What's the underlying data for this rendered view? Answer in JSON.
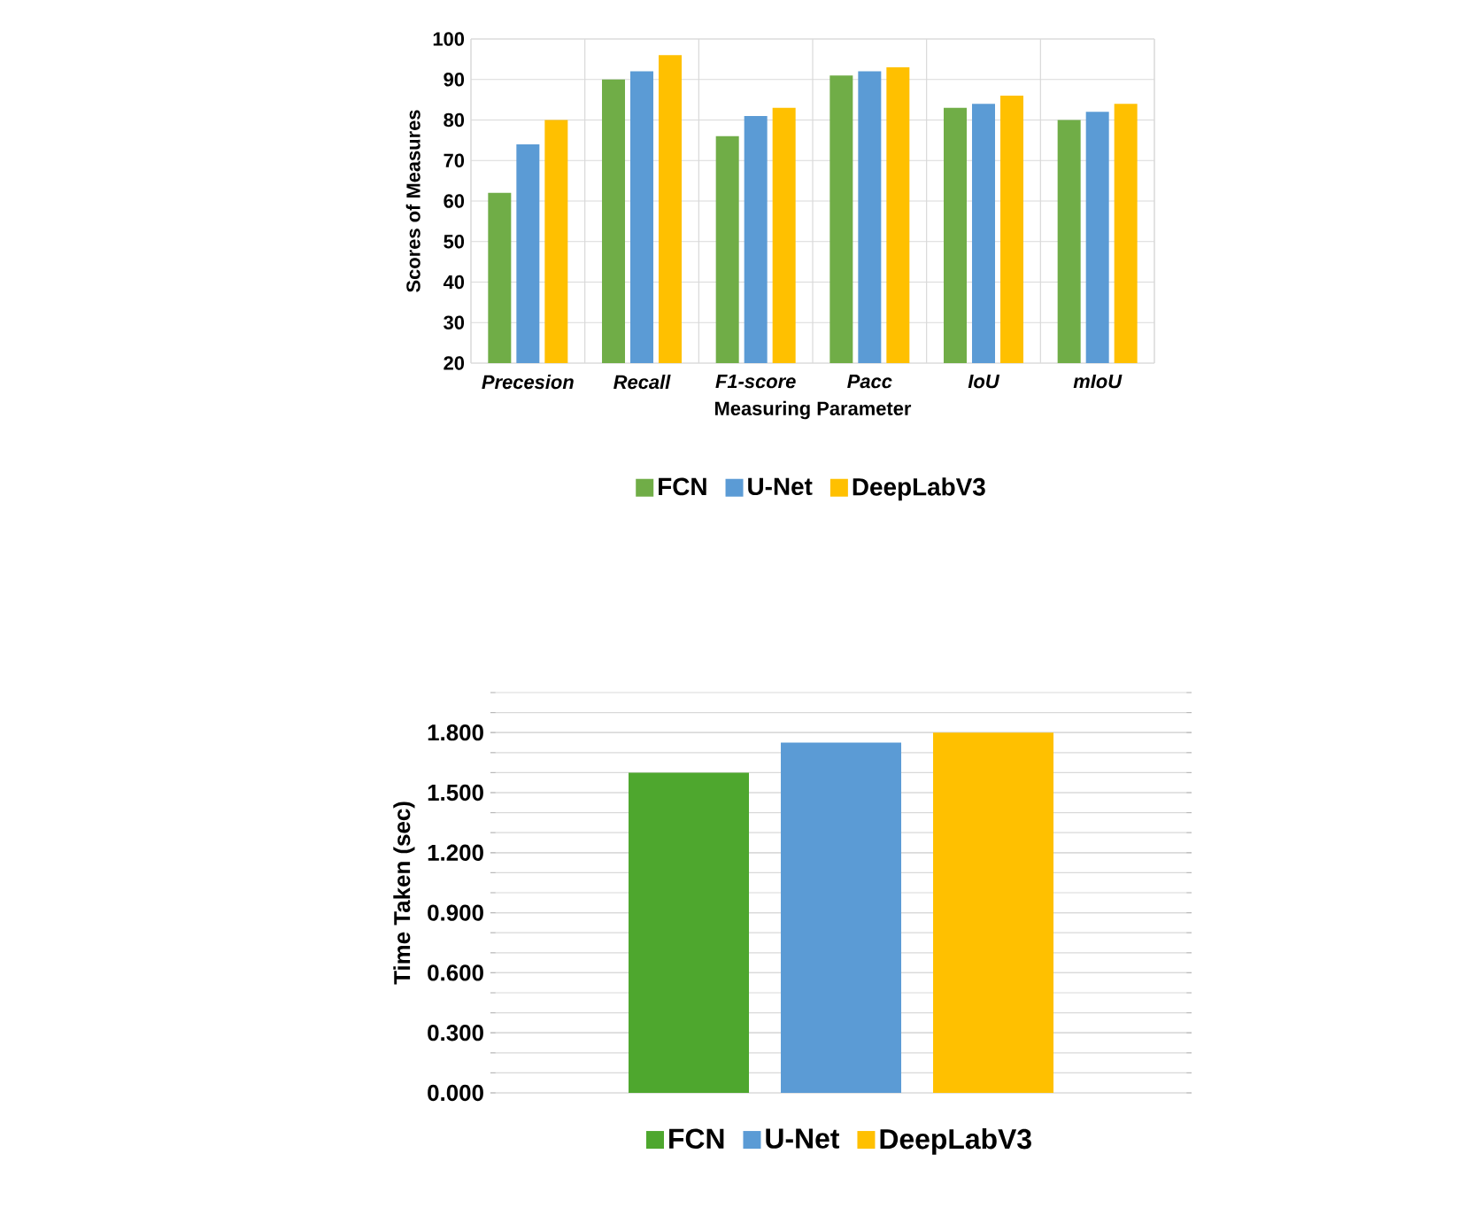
{
  "chart_data": [
    {
      "type": "bar",
      "xlabel": "Measuring Parameter",
      "ylabel": "Scores  of Measures",
      "categories": [
        "Precesion",
        "Recall",
        "F1-score",
        "Pacc",
        "IoU",
        "mIoU"
      ],
      "series": [
        {
          "name": "FCN",
          "color": "#70ad47",
          "values": [
            62,
            90,
            76,
            91,
            83,
            80
          ]
        },
        {
          "name": "U-Net",
          "color": "#5b9bd5",
          "values": [
            74,
            92,
            81,
            92,
            84,
            82
          ]
        },
        {
          "name": "DeepLabV3",
          "color": "#ffc000",
          "values": [
            80,
            96,
            83,
            93,
            86,
            84
          ]
        }
      ],
      "ylim": [
        20,
        100
      ],
      "yticks": [
        20,
        30,
        40,
        50,
        60,
        70,
        80,
        90,
        100
      ],
      "grid": true,
      "legend": "bottom"
    },
    {
      "type": "bar",
      "ylabel": "Time Taken (sec)",
      "categories": [
        null
      ],
      "series": [
        {
          "name": "FCN",
          "color": "#4ea72e",
          "values": [
            1.6
          ]
        },
        {
          "name": "U-Net",
          "color": "#5b9bd5",
          "values": [
            1.75
          ]
        },
        {
          "name": "DeepLabV3",
          "color": "#ffc000",
          "values": [
            1.8
          ]
        }
      ],
      "ylim": [
        0,
        2.0
      ],
      "yticks": [
        {
          "value": 0,
          "label": "0.000"
        },
        {
          "value": 0.3,
          "label": "0.300"
        },
        {
          "value": 0.6,
          "label": "0.600"
        },
        {
          "value": 0.9,
          "label": "0.900"
        },
        {
          "value": 1.2,
          "label": "1.200"
        },
        {
          "value": 1.5,
          "label": "1.500"
        },
        {
          "value": 1.8,
          "label": "1.800"
        }
      ],
      "grid": "y",
      "legend": "bottom",
      "tick_labels": "y"
    }
  ]
}
